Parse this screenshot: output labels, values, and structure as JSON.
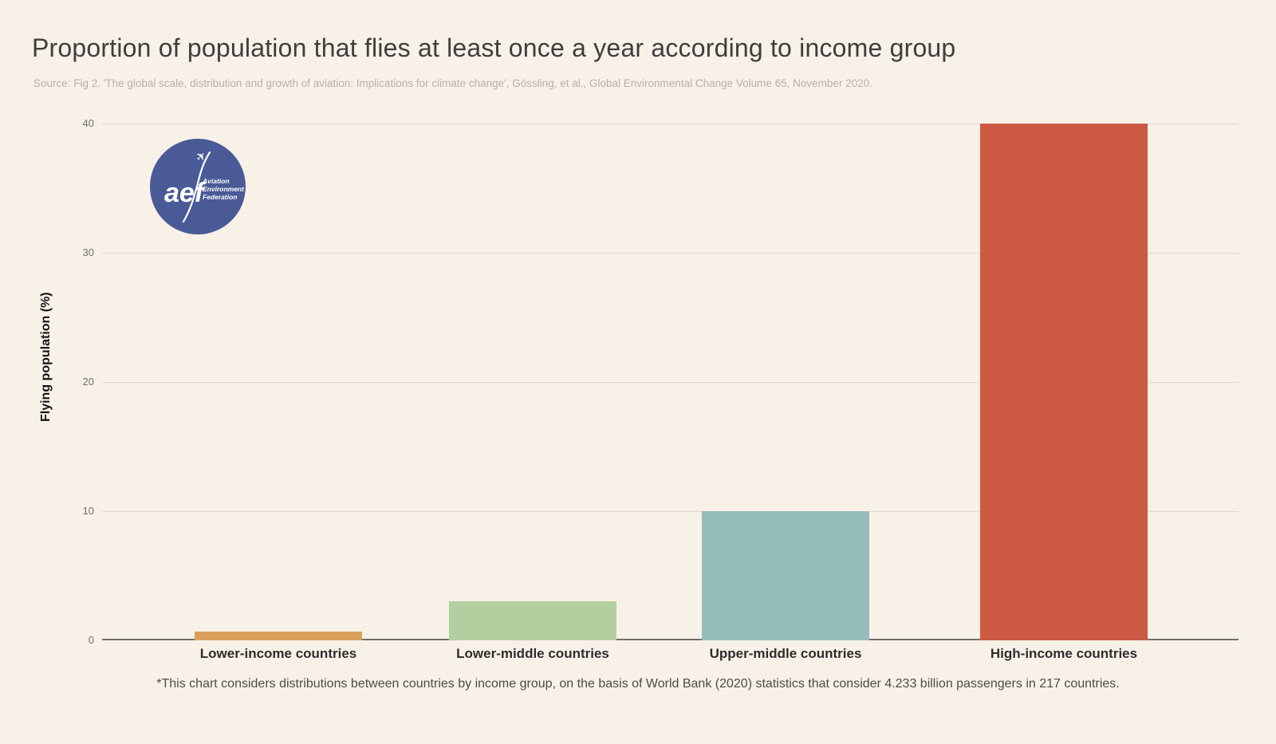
{
  "header": {
    "title": "Proportion of population that flies at least once a year according to income group",
    "source": "Source: Fig 2. 'The global scale, distribution and growth of aviation: Implications for climate change', Gössling, et al., Global Environmental Change Volume 65, November 2020."
  },
  "logo": {
    "abbr": "aef",
    "org_lines": [
      "Aviation",
      "Environment",
      "Federation"
    ],
    "background_color": "#495a97",
    "plane_icon": "✈"
  },
  "chart_data": {
    "type": "bar",
    "title": "Proportion of population that flies at least once a year according to income group",
    "categories": [
      "Lower-income countries",
      "Lower-middle countries",
      "Upper-middle countries",
      "High-income countries"
    ],
    "values": [
      0.7,
      3,
      10,
      40
    ],
    "colors": [
      "#dba15c",
      "#b3cfa0",
      "#95bcba",
      "#cc5a43"
    ],
    "xlabel": "",
    "ylabel": "Flying population (%)",
    "yticks": [
      0,
      10,
      20,
      30,
      40
    ],
    "ylim": [
      0,
      40
    ],
    "grid": true,
    "legend": "none",
    "background": "#f8f1e7"
  },
  "footnote": "*This chart considers distributions between countries by income group, on the basis of World Bank (2020) statistics that consider 4.233 billion passengers in 217 countries."
}
